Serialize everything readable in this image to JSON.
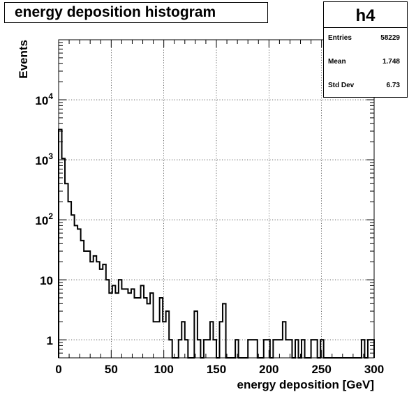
{
  "chart_data": {
    "type": "histogram",
    "title": "energy deposition histogram",
    "xlabel": "energy deposition [GeV]",
    "ylabel": "Events",
    "xlim": [
      0,
      300
    ],
    "ylim": [
      0.5,
      100000
    ],
    "yscale": "log",
    "grid": true,
    "bin_width": 3,
    "x_ticks": [
      0,
      50,
      100,
      150,
      200,
      250,
      300
    ],
    "x_tick_labels": [
      "0",
      "50",
      "100",
      "150",
      "200",
      "250",
      "300"
    ],
    "y_ticks": [
      1,
      10,
      100,
      1000,
      10000
    ],
    "y_tick_labels": [
      {
        "base": "1",
        "exp": ""
      },
      {
        "base": "10",
        "exp": ""
      },
      {
        "base": "10",
        "exp": "2"
      },
      {
        "base": "10",
        "exp": "3"
      },
      {
        "base": "10",
        "exp": "4"
      }
    ],
    "bin_edges": [
      0,
      3,
      6,
      9,
      12,
      15,
      18,
      21,
      24,
      27,
      30,
      33,
      36,
      39,
      42,
      45,
      48,
      51,
      54,
      57,
      60,
      63,
      66,
      69,
      72,
      75,
      78,
      81,
      84,
      87,
      90,
      93,
      96,
      99,
      102,
      105,
      108,
      111,
      114,
      117,
      120,
      123,
      126,
      129,
      132,
      135,
      138,
      141,
      144,
      147,
      150,
      153,
      156,
      159,
      162,
      165,
      168,
      171,
      174,
      177,
      180,
      183,
      186,
      189,
      192,
      195,
      198,
      201,
      204,
      207,
      210,
      213,
      216,
      219,
      222,
      225,
      228,
      231,
      234,
      237,
      240,
      243,
      246,
      249,
      252,
      255,
      258,
      261,
      264,
      267,
      270,
      273,
      276,
      279,
      282,
      285,
      288,
      291,
      294,
      297,
      300
    ],
    "counts": [
      3200,
      1050,
      400,
      200,
      120,
      80,
      70,
      45,
      30,
      30,
      20,
      25,
      20,
      15,
      18,
      10,
      6,
      8,
      6,
      10,
      7,
      7,
      6,
      7,
      5,
      5,
      8,
      5,
      4,
      6,
      2,
      2,
      5,
      2,
      3,
      1,
      0,
      0,
      1,
      2,
      1,
      0,
      0,
      3,
      1,
      0,
      1,
      1,
      2,
      1,
      0,
      2,
      4,
      0,
      0,
      0,
      1,
      0,
      0,
      0,
      1,
      1,
      1,
      0,
      0,
      1,
      1,
      0,
      1,
      1,
      1,
      2,
      1,
      1,
      0,
      1,
      0,
      1,
      0,
      0,
      1,
      1,
      0,
      1,
      0,
      0,
      0,
      0,
      0,
      0,
      0,
      0,
      0,
      0,
      0,
      0,
      1,
      0,
      1,
      1
    ]
  },
  "stats": {
    "name": "h4",
    "entries_label": "Entries",
    "entries": "58229",
    "mean_label": "Mean",
    "mean": "1.748",
    "stddev_label": "Std Dev",
    "stddev": "6.73"
  }
}
